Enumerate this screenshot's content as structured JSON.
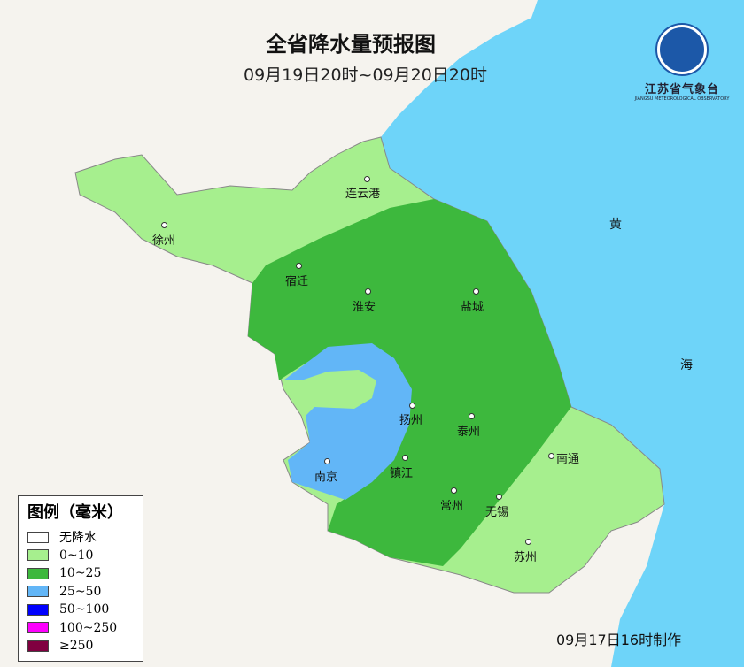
{
  "title": "全省降水量预报图",
  "period": "09月19日20时~09月20日20时",
  "logo": {
    "org": "江苏省气象台",
    "en": "JIANGSU METEOROLOGICAL OBSERVATORY"
  },
  "sea_labels": [
    "黄",
    "海"
  ],
  "cities": [
    "连云港",
    "徐州",
    "宿迁",
    "淮安",
    "盐城",
    "扬州",
    "泰州",
    "南京",
    "镇江",
    "南通",
    "常州",
    "无锡",
    "苏州"
  ],
  "legend": {
    "title": "图例（毫米）",
    "items": [
      {
        "label": "无降水",
        "color": "#ffffff"
      },
      {
        "label": "0~10",
        "color": "#a6ef8e"
      },
      {
        "label": "10~25",
        "color": "#3db83d"
      },
      {
        "label": "25~50",
        "color": "#62b6f7"
      },
      {
        "label": "50~100",
        "color": "#0000fe"
      },
      {
        "label": "100~250",
        "color": "#fe00fe"
      },
      {
        "label": "≥250",
        "color": "#800040"
      }
    ]
  },
  "made": "09月17日16时制作",
  "colors": {
    "sea": "#6ed4f9",
    "land": "#f5f3ee"
  }
}
